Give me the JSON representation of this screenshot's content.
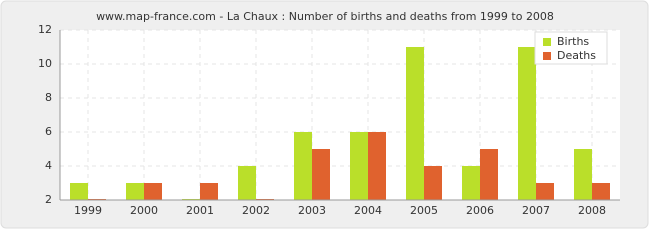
{
  "chart_data": {
    "type": "bar",
    "title": "www.map-france.com - La Chaux : Number of births and deaths from 1999 to 2008",
    "categories": [
      "1999",
      "2000",
      "2001",
      "2002",
      "2003",
      "2004",
      "2005",
      "2006",
      "2007",
      "2008"
    ],
    "series": [
      {
        "name": "Births",
        "color": "#badf2a",
        "values": [
          3,
          3,
          2,
          4,
          6,
          6,
          11,
          4,
          11,
          5
        ]
      },
      {
        "name": "Deaths",
        "color": "#e0622e",
        "values": [
          2,
          3,
          3,
          2,
          5,
          6,
          4,
          5,
          3,
          3
        ]
      }
    ],
    "ylim": [
      2,
      12
    ],
    "yticks": [
      2,
      4,
      6,
      8,
      10,
      12
    ],
    "grid": true,
    "legend": "top-right"
  }
}
